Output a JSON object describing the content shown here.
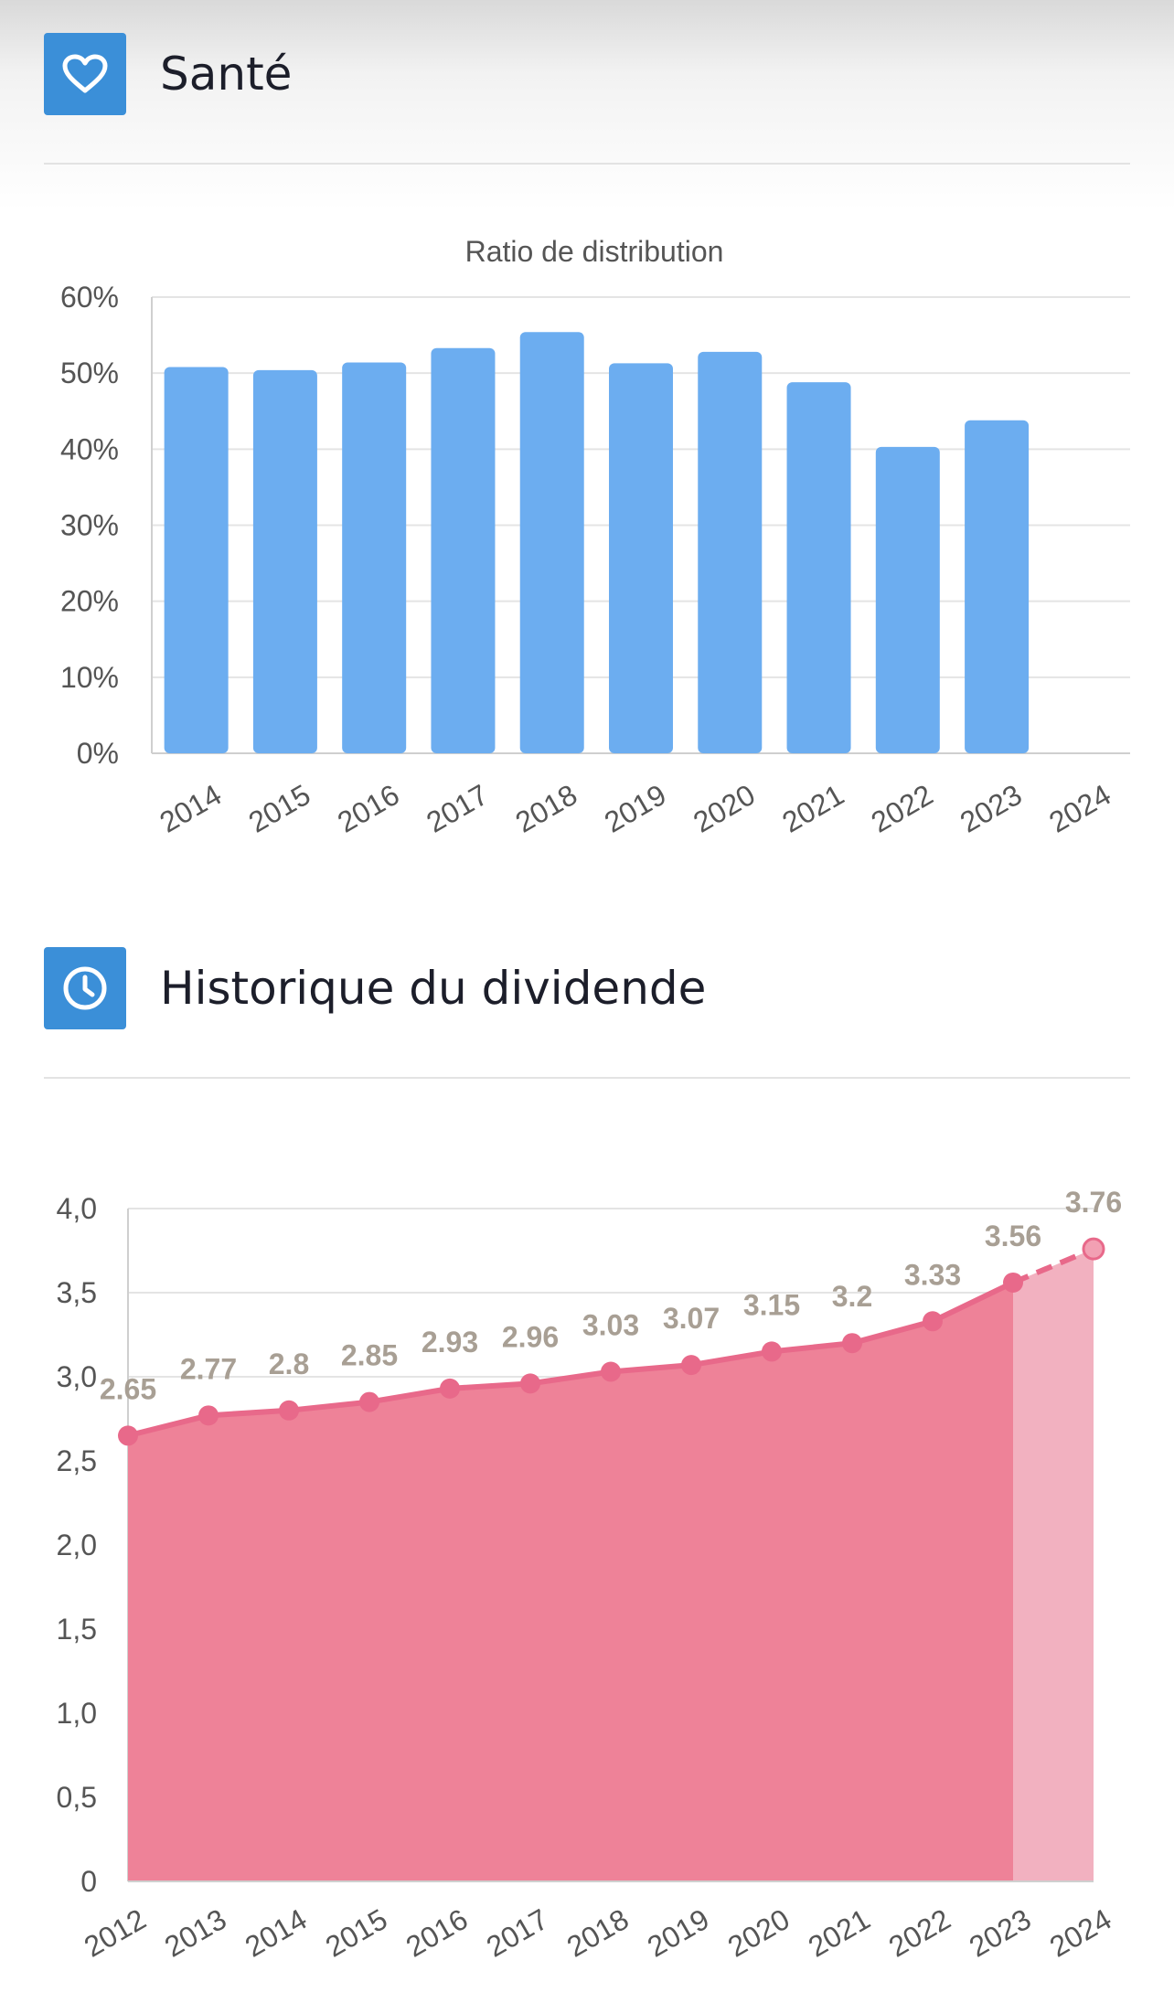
{
  "sections": [
    {
      "title": "Santé",
      "icon": "heart-icon"
    },
    {
      "title": "Historique du dividende",
      "icon": "clock-icon"
    }
  ],
  "colors": {
    "icon_bg": "#3b8fd8",
    "bar_fill": "#6cadf0",
    "line": "#e8698a",
    "area": "#ee8298",
    "area_forecast": "#f2b1c0",
    "value_labels": "#a89f94"
  },
  "chart_data": [
    {
      "type": "bar",
      "title": "Ratio de distribution",
      "categories": [
        "2014",
        "2015",
        "2016",
        "2017",
        "2018",
        "2019",
        "2020",
        "2021",
        "2022",
        "2023",
        "2024"
      ],
      "values": [
        50.8,
        50.4,
        51.4,
        53.3,
        55.4,
        51.3,
        52.8,
        48.8,
        40.3,
        43.8,
        null
      ],
      "ylim": [
        0,
        60
      ],
      "yticks": [
        "0%",
        "10%",
        "20%",
        "30%",
        "40%",
        "50%",
        "60%"
      ],
      "grid": true
    },
    {
      "type": "area",
      "categories": [
        "2012",
        "2013",
        "2014",
        "2015",
        "2016",
        "2017",
        "2018",
        "2019",
        "2020",
        "2021",
        "2022",
        "2023",
        "2024"
      ],
      "values": [
        2.65,
        2.77,
        2.8,
        2.85,
        2.93,
        2.96,
        3.03,
        3.07,
        3.15,
        3.2,
        3.33,
        3.56,
        3.76
      ],
      "labels": [
        "2.65",
        "2.77",
        "2.8",
        "2.85",
        "2.93",
        "2.96",
        "3.03",
        "3.07",
        "3.15",
        "3.2",
        "3.33",
        "3.56",
        "3.76"
      ],
      "forecast_from": "2023",
      "ylim": [
        0,
        4
      ],
      "yticks": [
        "0",
        "0,5",
        "1,0",
        "1,5",
        "2,0",
        "2,5",
        "3,0",
        "3,5",
        "4,0"
      ],
      "grid": true
    }
  ]
}
